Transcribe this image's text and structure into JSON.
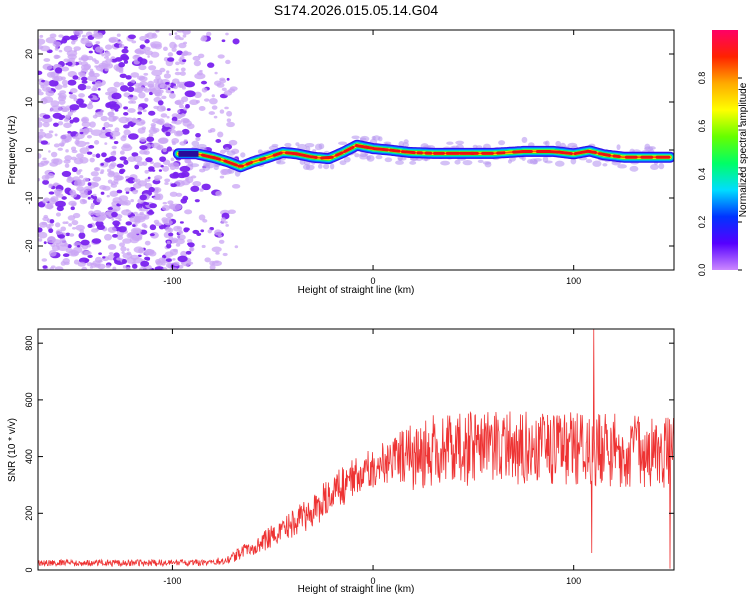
{
  "title": "S174.2026.015.05.14.G04",
  "colorbar": {
    "label": "Normalized spectral amplitude",
    "ticks": [
      "0.0",
      "0.2",
      "0.4",
      "0.6",
      "0.8"
    ],
    "stops": [
      "#cc88ff",
      "#5500ff",
      "#0033ff",
      "#00ddff",
      "#00ff66",
      "#66ff00",
      "#ffff00",
      "#ffaa00",
      "#ff2200",
      "#ff0066"
    ]
  },
  "chart_data": [
    {
      "type": "heatmap",
      "xlabel": "Height of straight line (km)",
      "ylabel": "Frequency (Hz)",
      "xlim": [
        -167,
        150
      ],
      "ylim": [
        -25,
        25
      ],
      "x_ticks": [
        -100,
        0,
        100
      ],
      "y_ticks": [
        -20,
        -10,
        0,
        10,
        20
      ],
      "x_tick_labels": [
        "-100",
        "0",
        "100"
      ],
      "y_tick_labels": [
        "-20",
        "-10",
        "0",
        "10",
        "20"
      ],
      "noise_region_x": [
        -167,
        -82
      ],
      "signal_track": {
        "x": [
          -97,
          -88,
          -80,
          -72,
          -66,
          -60,
          -52,
          -45,
          -38,
          -30,
          -22,
          -15,
          -8,
          0,
          8,
          18,
          30,
          45,
          60,
          75,
          90,
          100,
          108,
          115,
          125,
          135,
          148
        ],
        "y": [
          -0.8,
          -0.8,
          -1.5,
          -2.5,
          -3.5,
          -2.5,
          -1.5,
          -0.5,
          -0.8,
          -1.5,
          -1.8,
          -0.5,
          1.0,
          0.3,
          0.0,
          -0.5,
          -0.7,
          -0.7,
          -0.7,
          -0.3,
          -0.3,
          -0.8,
          -0.2,
          -1.0,
          -1.5,
          -1.5,
          -1.5
        ]
      }
    },
    {
      "type": "line",
      "xlabel": "Height of straight line (km)",
      "ylabel": "SNR (10 * v/v)",
      "xlim": [
        -167,
        150
      ],
      "ylim": [
        0,
        850
      ],
      "x_ticks": [
        -100,
        0,
        100
      ],
      "y_ticks": [
        0,
        200,
        400,
        600,
        800
      ],
      "x_tick_labels": [
        "-100",
        "0",
        "100"
      ],
      "y_tick_labels": [
        "0",
        "200",
        "400",
        "600",
        "800"
      ],
      "color": "#ee3333",
      "trend": {
        "x": [
          -167,
          -80,
          -70,
          -60,
          -50,
          -40,
          -30,
          -20,
          -10,
          0,
          10,
          20,
          30,
          60,
          90,
          110,
          130,
          150
        ],
        "mean": [
          25,
          25,
          45,
          80,
          120,
          160,
          210,
          270,
          320,
          360,
          390,
          400,
          420,
          430,
          430,
          425,
          420,
          420
        ],
        "spread": [
          12,
          12,
          20,
          30,
          40,
          50,
          60,
          70,
          70,
          70,
          80,
          120,
          130,
          130,
          130,
          130,
          130,
          130
        ]
      },
      "spikes": [
        {
          "x": 110,
          "y": 850
        },
        {
          "x": 109,
          "y": 60
        },
        {
          "x": 148,
          "y": 5
        }
      ]
    }
  ]
}
